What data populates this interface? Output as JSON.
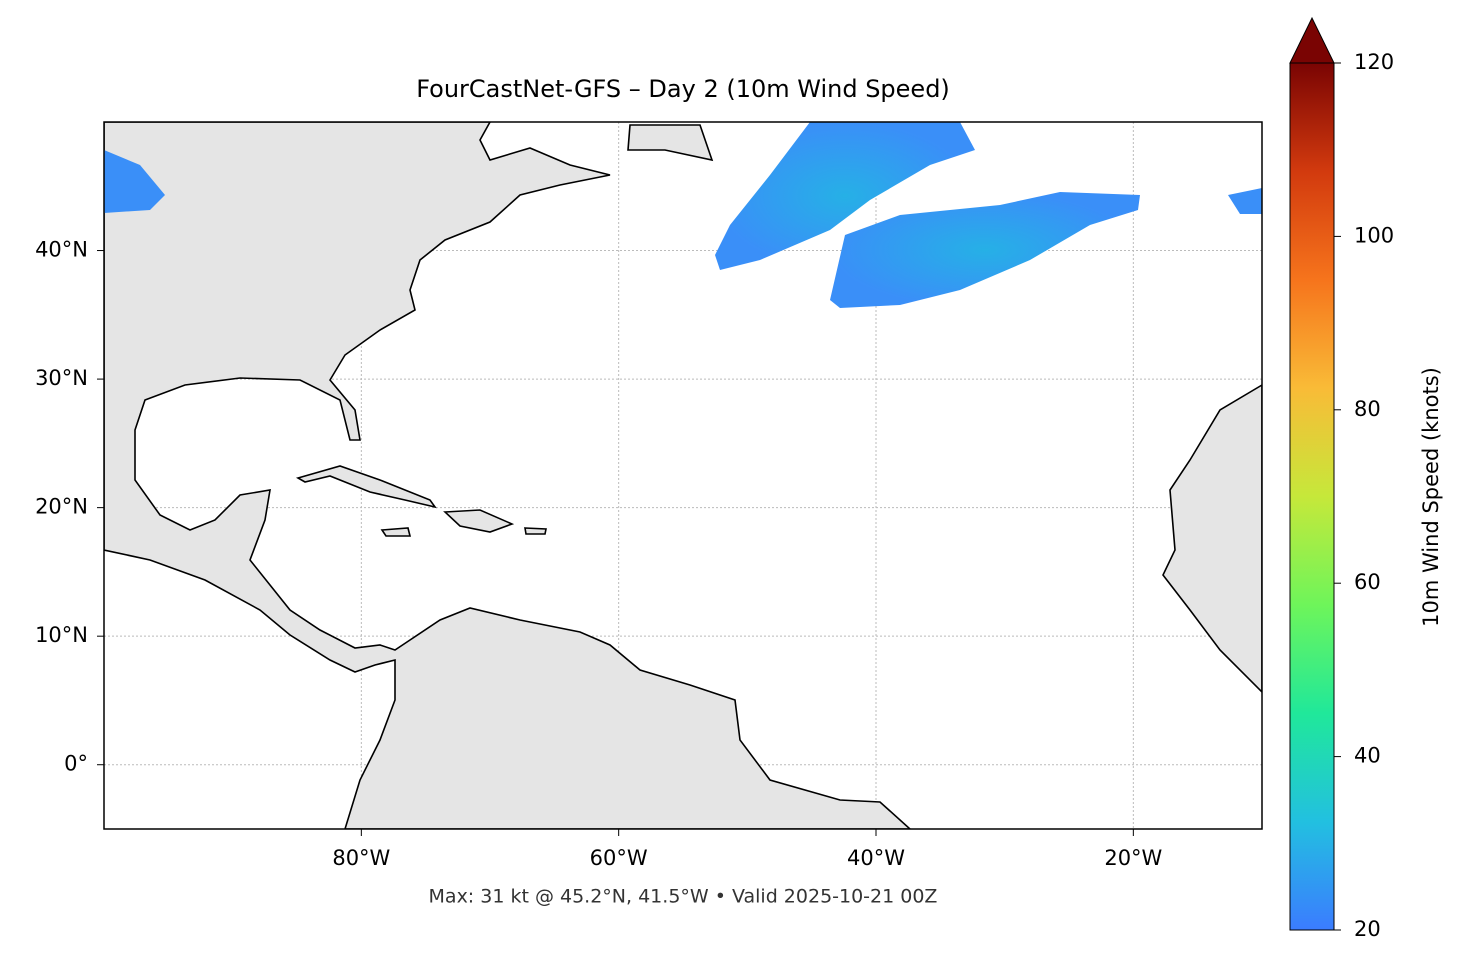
{
  "chart_data": {
    "type": "map",
    "title": "FourCastNet-GFS – Day 2 (10m Wind Speed)",
    "xlim": [
      -100,
      -10
    ],
    "ylim": [
      -5,
      50
    ],
    "xticks": [
      {
        "value": -80,
        "label": "80°W"
      },
      {
        "value": -60,
        "label": "60°W"
      },
      {
        "value": -40,
        "label": "40°W"
      },
      {
        "value": -20,
        "label": "20°W"
      }
    ],
    "yticks": [
      {
        "value": 0,
        "label": "0°"
      },
      {
        "value": 10,
        "label": "10°N"
      },
      {
        "value": 20,
        "label": "20°N"
      },
      {
        "value": 30,
        "label": "30°N"
      },
      {
        "value": 40,
        "label": "40°N"
      }
    ],
    "grid": true,
    "footer": "Max: 31 kt @ 45.2°N, 41.5°W • Valid 2025-10-21 00Z",
    "colorbar": {
      "label": "10m Wind Speed (knots)",
      "lim": [
        20,
        120
      ],
      "ticks": [
        20,
        40,
        60,
        80,
        100,
        120
      ],
      "colors": [
        "#3b7cff",
        "#22c0e0",
        "#20e89a",
        "#6ef55a",
        "#c6e83a",
        "#f9bb37",
        "#f6741c",
        "#d23a0e",
        "#7a0403"
      ]
    }
  }
}
